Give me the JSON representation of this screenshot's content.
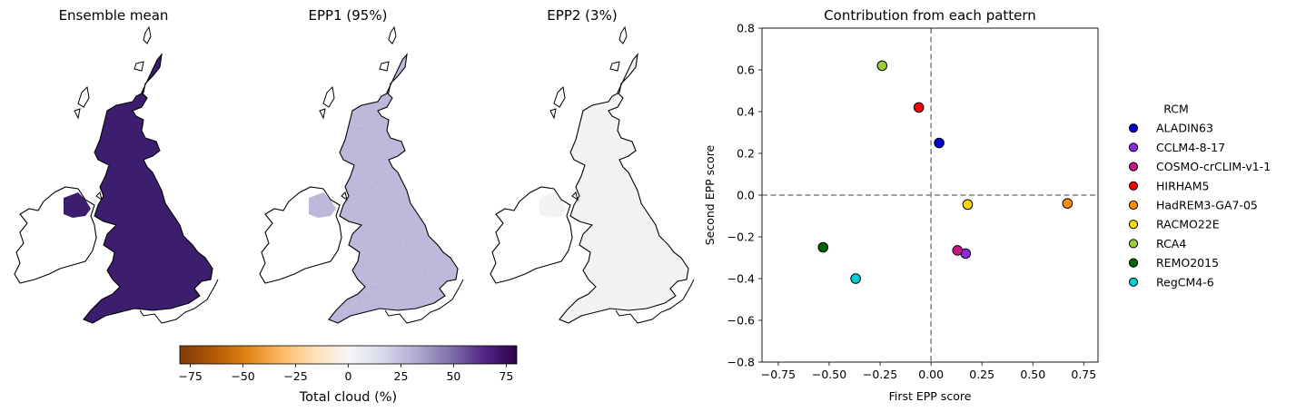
{
  "maps": [
    {
      "id": "mean",
      "title": "Ensemble mean",
      "fill": "#3d1d6e",
      "texture": "none"
    },
    {
      "id": "epp1",
      "title": "EPP1 (95%)",
      "fill": "#bcb8d9",
      "texture": "light"
    },
    {
      "id": "epp2",
      "title": "EPP2 (3%)",
      "fill": "#f3f3f3",
      "texture": "speckle"
    }
  ],
  "colorbar": {
    "label": "Total cloud (%)",
    "min": -80,
    "max": 80,
    "ticks": [
      -75,
      -50,
      -25,
      0,
      25,
      50,
      75
    ],
    "tick_labels": [
      "−75",
      "−50",
      "−25",
      "0",
      "25",
      "50",
      "75"
    ],
    "colormap": "PuOr",
    "colors": [
      "#7f3b08",
      "#b35806",
      "#e08214",
      "#fdb863",
      "#fee0b6",
      "#f7f7f7",
      "#d8daeb",
      "#b2abd2",
      "#8073ac",
      "#542788",
      "#2d004b"
    ]
  },
  "chart_data": {
    "type": "scatter",
    "title": "Contribution from each pattern",
    "xlabel": "First EPP score",
    "ylabel": "Second EPP score",
    "xlim": [
      -0.83,
      0.82
    ],
    "ylim": [
      -0.8,
      0.8
    ],
    "xticks": [
      -0.75,
      -0.5,
      -0.25,
      0.0,
      0.25,
      0.5,
      0.75
    ],
    "xtick_labels": [
      "−0.75",
      "−0.50",
      "−0.25",
      "0.00",
      "0.25",
      "0.50",
      "0.75"
    ],
    "yticks": [
      -0.8,
      -0.6,
      -0.4,
      -0.2,
      0.0,
      0.2,
      0.4,
      0.6,
      0.8
    ],
    "ytick_labels": [
      "−0.8",
      "−0.6",
      "−0.4",
      "−0.2",
      "0.0",
      "0.2",
      "0.4",
      "0.6",
      "0.8"
    ],
    "reference_lines": {
      "x": 0,
      "y": 0,
      "style": "dashed",
      "color": "#808080"
    },
    "legend": {
      "title": "RCM",
      "placement": "right-outside"
    },
    "series": [
      {
        "name": "ALADIN63",
        "color": "#0000cd",
        "x": 0.04,
        "y": 0.25
      },
      {
        "name": "CCLM4-8-17",
        "color": "#8a2be2",
        "x": 0.17,
        "y": -0.28
      },
      {
        "name": "COSMO-crCLIM-v1-1",
        "color": "#c71585",
        "x": 0.13,
        "y": -0.265
      },
      {
        "name": "HIRHAM5",
        "color": "#ff0000",
        "x": -0.06,
        "y": 0.42
      },
      {
        "name": "HadREM3-GA7-05",
        "color": "#ff8c00",
        "x": 0.67,
        "y": -0.04
      },
      {
        "name": "RACMO22E",
        "color": "#ffd700",
        "x": 0.18,
        "y": -0.045
      },
      {
        "name": "RCA4",
        "color": "#9acd32",
        "x": -0.24,
        "y": 0.62
      },
      {
        "name": "REMO2015",
        "color": "#006400",
        "x": -0.53,
        "y": -0.25
      },
      {
        "name": "RegCM4-6",
        "color": "#00ced1",
        "x": -0.37,
        "y": -0.4
      }
    ]
  }
}
